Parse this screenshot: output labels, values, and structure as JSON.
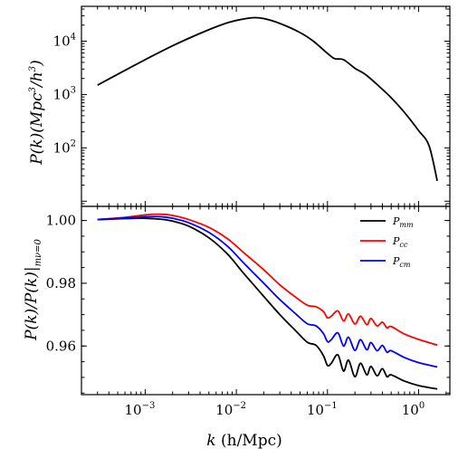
{
  "chart_data": [
    {
      "type": "line",
      "panel": "top",
      "xlabel": "",
      "ylabel": "P(k)(Mpc³/h³)",
      "ylabel_parts": {
        "lead": "P(k)(Mpc",
        "sup1": "3",
        "mid": "/h",
        "sup2": "3",
        "tail": ")"
      },
      "xscale": "log",
      "yscale": "log",
      "xlim": [
        0.0002,
        2.2
      ],
      "ylim": [
        8,
        45000
      ],
      "yticks": [
        {
          "base": "10",
          "exp": "2",
          "value": 100
        },
        {
          "base": "10",
          "exp": "3",
          "value": 1000
        },
        {
          "base": "10",
          "exp": "4",
          "value": 10000
        }
      ],
      "series": [
        {
          "color": "#000000",
          "x": [
            0.0003,
            0.0005,
            0.001,
            0.002,
            0.004,
            0.007,
            0.01,
            0.015,
            0.02,
            0.03,
            0.05,
            0.07,
            0.1,
            0.12,
            0.15,
            0.2,
            0.25,
            0.3,
            0.4,
            0.5,
            0.7,
            1.0,
            1.3,
            1.6
          ],
          "y": [
            1500,
            2400,
            4500,
            8200,
            14000,
            20500,
            24500,
            27500,
            26500,
            21500,
            14500,
            10000,
            5900,
            4700,
            4500,
            3100,
            2500,
            1950,
            1250,
            870,
            460,
            210,
            110,
            24
          ]
        }
      ]
    },
    {
      "type": "line",
      "panel": "bottom",
      "xlabel": "k (h/Mpc)",
      "xlabel_parts": {
        "k": "k",
        "rest": " (h/Mpc)"
      },
      "ylabel": "P(k)/P(k)|mν=0",
      "ylabel_parts": {
        "lead": "P(k)/P(k)|",
        "sub": "mν=0"
      },
      "xscale": "log",
      "yscale": "linear",
      "xlim": [
        0.0002,
        2.2
      ],
      "ylim": [
        0.9445,
        1.0045
      ],
      "yticks": [
        0.96,
        0.98,
        1.0
      ],
      "ytick_labels": [
        "0.96",
        "0.98",
        "1.00"
      ],
      "xticks": [
        {
          "base": "10",
          "exp": "−3",
          "value": 0.001
        },
        {
          "base": "10",
          "exp": "−2",
          "value": 0.01
        },
        {
          "base": "10",
          "exp": "−1",
          "value": 0.1
        },
        {
          "base": "10",
          "exp": "0",
          "value": 1
        }
      ],
      "legend": "top-right",
      "series": [
        {
          "name": "Pmm",
          "name_parts": {
            "main": "P",
            "sub": "mm"
          },
          "color": "#000000",
          "x": [
            0.0003,
            0.0006,
            0.001,
            0.0015,
            0.002,
            0.003,
            0.005,
            0.008,
            0.012,
            0.02,
            0.03,
            0.045,
            0.06,
            0.075,
            0.09,
            0.1,
            0.11,
            0.13,
            0.15,
            0.17,
            0.2,
            0.23,
            0.27,
            0.3,
            0.35,
            0.4,
            0.45,
            0.5,
            0.7,
            1.0,
            1.6
          ],
          "y": [
            1.0003,
            1.0006,
            1.0007,
            1.0004,
            0.9998,
            0.9982,
            0.9945,
            0.9893,
            0.9832,
            0.9758,
            0.97,
            0.9648,
            0.9612,
            0.9602,
            0.957,
            0.9538,
            0.9545,
            0.9572,
            0.952,
            0.9555,
            0.9502,
            0.9545,
            0.9508,
            0.9535,
            0.9505,
            0.9528,
            0.9502,
            0.9508,
            0.9488,
            0.9474,
            0.9463
          ]
        },
        {
          "name": "Pcc",
          "name_parts": {
            "main": "P",
            "sub": "cc"
          },
          "color": "#ff0000",
          "x": [
            0.0003,
            0.0006,
            0.001,
            0.0015,
            0.002,
            0.003,
            0.005,
            0.008,
            0.012,
            0.02,
            0.03,
            0.045,
            0.06,
            0.075,
            0.09,
            0.1,
            0.11,
            0.13,
            0.15,
            0.17,
            0.2,
            0.23,
            0.27,
            0.3,
            0.35,
            0.4,
            0.45,
            0.5,
            0.7,
            1.0,
            1.6
          ],
          "y": [
            1.0003,
            1.001,
            1.0018,
            1.002,
            1.0016,
            1.0003,
            0.9978,
            0.9942,
            0.9898,
            0.9843,
            0.9795,
            0.9755,
            0.973,
            0.9725,
            0.971,
            0.969,
            0.9695,
            0.9712,
            0.968,
            0.9702,
            0.967,
            0.9695,
            0.9668,
            0.9688,
            0.9664,
            0.9676,
            0.9658,
            0.9662,
            0.9638,
            0.9621,
            0.9603
          ]
        },
        {
          "name": "Pcm",
          "name_parts": {
            "main": "P",
            "sub": "cm"
          },
          "color": "#0000ff",
          "x": [
            0.0003,
            0.0006,
            0.001,
            0.0015,
            0.002,
            0.003,
            0.005,
            0.008,
            0.012,
            0.02,
            0.03,
            0.045,
            0.06,
            0.075,
            0.09,
            0.1,
            0.11,
            0.13,
            0.15,
            0.17,
            0.2,
            0.23,
            0.27,
            0.3,
            0.35,
            0.4,
            0.45,
            0.5,
            0.7,
            1.0,
            1.6
          ],
          "y": [
            1.0003,
            1.0008,
            1.0012,
            1.0012,
            1.0007,
            0.9993,
            0.9962,
            0.9918,
            0.9865,
            0.98,
            0.9748,
            0.9702,
            0.9671,
            0.9664,
            0.964,
            0.9614,
            0.962,
            0.9642,
            0.96,
            0.9628,
            0.9586,
            0.962,
            0.9588,
            0.9611,
            0.9585,
            0.9602,
            0.958,
            0.9585,
            0.9563,
            0.9547,
            0.9533
          ]
        }
      ]
    }
  ]
}
